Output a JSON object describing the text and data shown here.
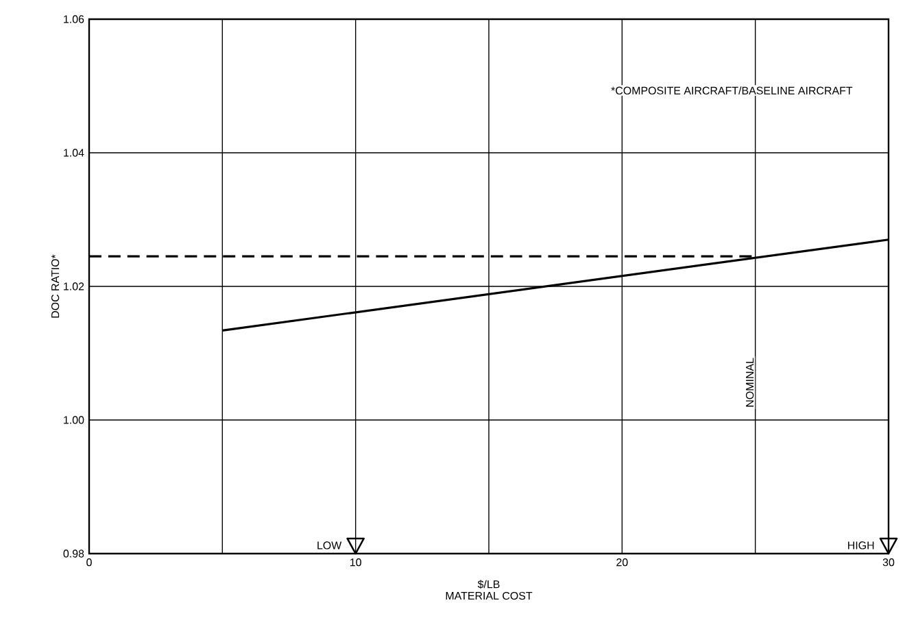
{
  "chart_data": {
    "type": "line",
    "xlabel": "MATERIAL COST",
    "ylabel": "DOC RATIO*",
    "xlim": [
      0,
      30
    ],
    "ylim": [
      0.98,
      1.06
    ],
    "xticks": [
      0,
      {
        "value": 5,
        "label": null
      },
      10,
      {
        "value": 15,
        "label": null
      },
      20,
      {
        "value": 25,
        "label": null
      },
      30
    ],
    "yticks": [
      0.98,
      {
        "value": 1.0,
        "label": "1.00"
      },
      1.02,
      1.04,
      1.06
    ],
    "grid": true,
    "marker": "none",
    "series": [
      {
        "color": "#000000",
        "line_style": "solid",
        "x": [
          5,
          30
        ],
        "values": [
          1.0134,
          1.027
        ]
      },
      {
        "color": "#000000",
        "line_style": "dashed",
        "x": [
          0,
          25
        ],
        "values": [
          1.0245,
          1.0245
        ]
      }
    ],
    "annotations": [
      "*COMPOSITE AIRCRAFT/BASELINE AIRCRAFT",
      "$/LB",
      "LOW",
      "HIGH",
      "NOMINAL"
    ]
  }
}
